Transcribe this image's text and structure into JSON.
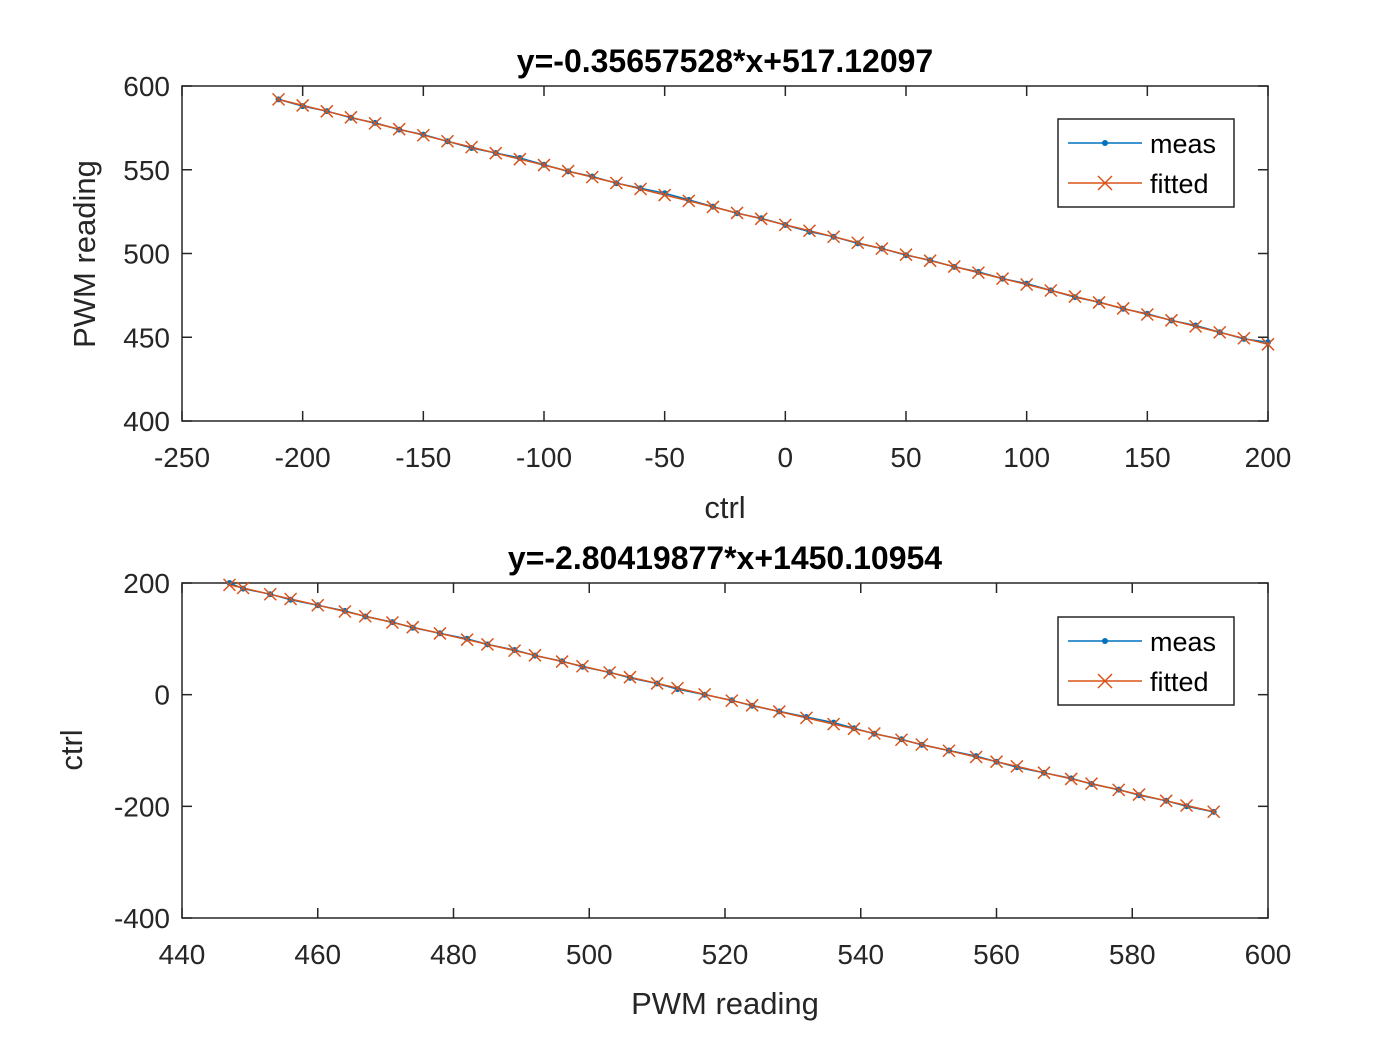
{
  "chart_data": [
    {
      "type": "line",
      "title": "y=-0.35657528*x+517.12097",
      "xlabel": "ctrl",
      "ylabel": "PWM reading",
      "xlim": [
        -250,
        200
      ],
      "ylim": [
        400,
        600
      ],
      "xticks": [
        -250,
        -200,
        -150,
        -100,
        -50,
        0,
        50,
        100,
        150,
        200
      ],
      "yticks": [
        400,
        450,
        500,
        550,
        600
      ],
      "xtick_labels": [
        "-250",
        "-200",
        "-150",
        "-100",
        "-50",
        "0",
        "50",
        "100",
        "150",
        "200"
      ],
      "ytick_labels": [
        "400",
        "450",
        "500",
        "550",
        "600"
      ],
      "grid": false,
      "legend_position": "top-right",
      "colors": {
        "meas": "#0072BD",
        "fitted": "#D95319"
      },
      "series": [
        {
          "name": "meas",
          "marker": "dot",
          "x": [
            -210,
            -200,
            -190,
            -180,
            -170,
            -160,
            -150,
            -140,
            -130,
            -120,
            -110,
            -100,
            -90,
            -80,
            -70,
            -60,
            -50,
            -40,
            -30,
            -20,
            -10,
            0,
            10,
            20,
            30,
            40,
            50,
            60,
            70,
            80,
            90,
            100,
            110,
            120,
            130,
            140,
            150,
            160,
            170,
            180,
            190,
            200
          ],
          "y": [
            592,
            588,
            585,
            581,
            578,
            574,
            571,
            567,
            563,
            560,
            557,
            553,
            549,
            546,
            542,
            539,
            536,
            532,
            528,
            524,
            521,
            517,
            513,
            510,
            506,
            503,
            499,
            496,
            492,
            489,
            485,
            482,
            478,
            474,
            471,
            467,
            464,
            460,
            457,
            453,
            449,
            447
          ]
        },
        {
          "name": "fitted",
          "marker": "x",
          "x": [
            -210,
            -200,
            -190,
            -180,
            -170,
            -160,
            -150,
            -140,
            -130,
            -120,
            -110,
            -100,
            -90,
            -80,
            -70,
            -60,
            -50,
            -40,
            -30,
            -20,
            -10,
            0,
            10,
            20,
            30,
            40,
            50,
            60,
            70,
            80,
            90,
            100,
            110,
            120,
            130,
            140,
            150,
            160,
            170,
            180,
            190,
            200
          ],
          "y": [
            592.0,
            588.4,
            584.9,
            581.3,
            577.7,
            574.2,
            570.6,
            567.0,
            563.5,
            559.9,
            556.3,
            552.8,
            549.2,
            545.6,
            542.1,
            538.5,
            534.9,
            531.4,
            527.8,
            524.2,
            520.7,
            517.1,
            513.6,
            510.0,
            506.4,
            502.9,
            499.3,
            495.7,
            492.2,
            488.6,
            485.0,
            481.5,
            477.9,
            474.3,
            470.8,
            467.2,
            463.6,
            460.1,
            456.5,
            452.9,
            449.4,
            445.8
          ]
        }
      ]
    },
    {
      "type": "line",
      "title": "y=-2.80419877*x+1450.10954",
      "xlabel": "PWM reading",
      "ylabel": "ctrl",
      "xlim": [
        440,
        600
      ],
      "ylim": [
        -400,
        200
      ],
      "xticks": [
        440,
        460,
        480,
        500,
        520,
        540,
        560,
        580,
        600
      ],
      "yticks": [
        -400,
        -200,
        0,
        200
      ],
      "xtick_labels": [
        "440",
        "460",
        "480",
        "500",
        "520",
        "540",
        "560",
        "580",
        "600"
      ],
      "ytick_labels": [
        "-400",
        "-200",
        "0",
        "200"
      ],
      "grid": false,
      "legend_position": "top-right",
      "colors": {
        "meas": "#0072BD",
        "fitted": "#D95319"
      },
      "series": [
        {
          "name": "meas",
          "marker": "dot",
          "x": [
            447,
            449,
            453,
            456,
            460,
            464,
            467,
            471,
            474,
            478,
            482,
            485,
            489,
            492,
            496,
            499,
            503,
            506,
            510,
            513,
            517,
            521,
            524,
            528,
            532,
            536,
            539,
            542,
            546,
            549,
            553,
            557,
            560,
            563,
            567,
            571,
            574,
            578,
            581,
            585,
            588,
            592
          ],
          "y": [
            200,
            190,
            180,
            170,
            160,
            150,
            140,
            130,
            120,
            110,
            100,
            90,
            80,
            70,
            60,
            50,
            40,
            30,
            20,
            10,
            0,
            -10,
            -20,
            -30,
            -40,
            -50,
            -60,
            -70,
            -80,
            -90,
            -100,
            -110,
            -120,
            -130,
            -140,
            -150,
            -160,
            -170,
            -180,
            -190,
            -200,
            -210
          ]
        },
        {
          "name": "fitted",
          "marker": "x",
          "x": [
            447,
            449,
            453,
            456,
            460,
            464,
            467,
            471,
            474,
            478,
            482,
            485,
            489,
            492,
            496,
            499,
            503,
            506,
            510,
            513,
            517,
            521,
            524,
            528,
            532,
            536,
            539,
            542,
            546,
            549,
            553,
            557,
            560,
            563,
            567,
            571,
            574,
            578,
            581,
            585,
            588,
            592
          ],
          "y": [
            196.6,
            191.0,
            179.8,
            171.4,
            160.2,
            149.0,
            140.5,
            129.3,
            120.9,
            109.7,
            98.5,
            90.1,
            78.9,
            70.5,
            59.3,
            50.9,
            39.7,
            31.3,
            20.1,
            11.7,
            0.5,
            -10.7,
            -19.1,
            -30.3,
            -41.6,
            -52.8,
            -61.2,
            -69.6,
            -80.8,
            -89.2,
            -100.4,
            -111.6,
            -120.0,
            -128.4,
            -139.7,
            -150.9,
            -159.3,
            -170.5,
            -178.9,
            -190.1,
            -198.5,
            -209.7
          ]
        }
      ]
    }
  ]
}
